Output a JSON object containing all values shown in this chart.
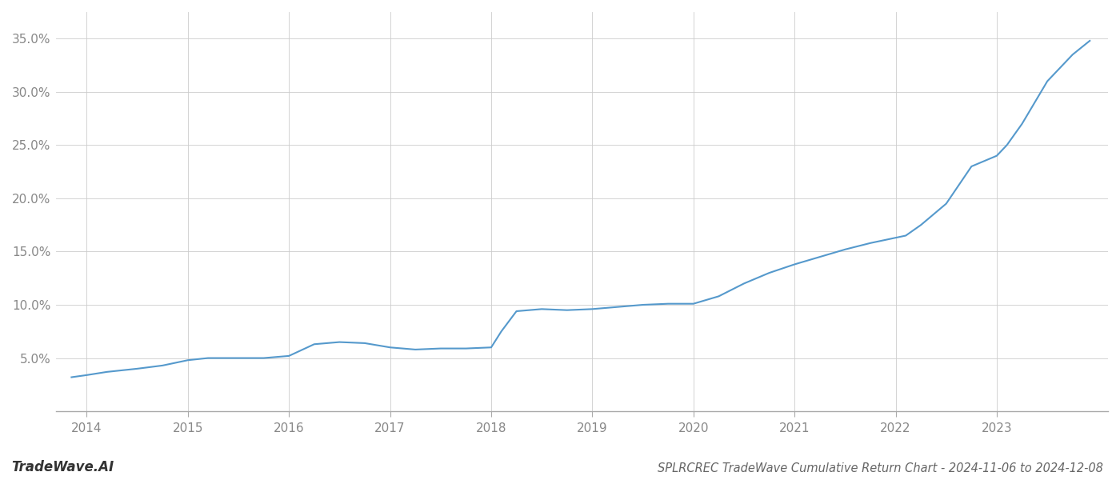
{
  "title": "SPLRCREC TradeWave Cumulative Return Chart - 2024-11-06 to 2024-12-08",
  "watermark": "TradeWave.AI",
  "line_color": "#5599cc",
  "background_color": "#ffffff",
  "grid_color": "#cccccc",
  "x_values": [
    2013.85,
    2014.0,
    2014.2,
    2014.5,
    2014.75,
    2015.0,
    2015.2,
    2015.5,
    2015.75,
    2016.0,
    2016.25,
    2016.5,
    2016.75,
    2017.0,
    2017.25,
    2017.5,
    2017.75,
    2018.0,
    2018.1,
    2018.25,
    2018.5,
    2018.75,
    2019.0,
    2019.25,
    2019.5,
    2019.75,
    2020.0,
    2020.25,
    2020.5,
    2020.75,
    2021.0,
    2021.25,
    2021.5,
    2021.75,
    2022.0,
    2022.1,
    2022.25,
    2022.5,
    2022.75,
    2023.0,
    2023.1,
    2023.25,
    2023.5,
    2023.75,
    2023.92
  ],
  "y_values": [
    0.032,
    0.034,
    0.037,
    0.04,
    0.043,
    0.048,
    0.05,
    0.05,
    0.05,
    0.052,
    0.063,
    0.065,
    0.064,
    0.06,
    0.058,
    0.059,
    0.059,
    0.06,
    0.075,
    0.094,
    0.096,
    0.095,
    0.096,
    0.098,
    0.1,
    0.101,
    0.101,
    0.108,
    0.12,
    0.13,
    0.138,
    0.145,
    0.152,
    0.158,
    0.163,
    0.165,
    0.175,
    0.195,
    0.23,
    0.24,
    0.25,
    0.27,
    0.31,
    0.335,
    0.348
  ],
  "yticks": [
    0.05,
    0.1,
    0.15,
    0.2,
    0.25,
    0.3,
    0.35
  ],
  "ytick_labels": [
    "5.0%",
    "10.0%",
    "15.0%",
    "20.0%",
    "25.0%",
    "30.0%",
    "35.0%"
  ],
  "xticks": [
    2014,
    2015,
    2016,
    2017,
    2018,
    2019,
    2020,
    2021,
    2022,
    2023
  ],
  "xtick_labels": [
    "2014",
    "2015",
    "2016",
    "2017",
    "2018",
    "2019",
    "2020",
    "2021",
    "2022",
    "2023"
  ],
  "xlim": [
    2013.7,
    2024.1
  ],
  "ylim": [
    0.0,
    0.375
  ],
  "line_width": 1.5,
  "title_fontsize": 10.5,
  "tick_fontsize": 11,
  "watermark_fontsize": 12
}
